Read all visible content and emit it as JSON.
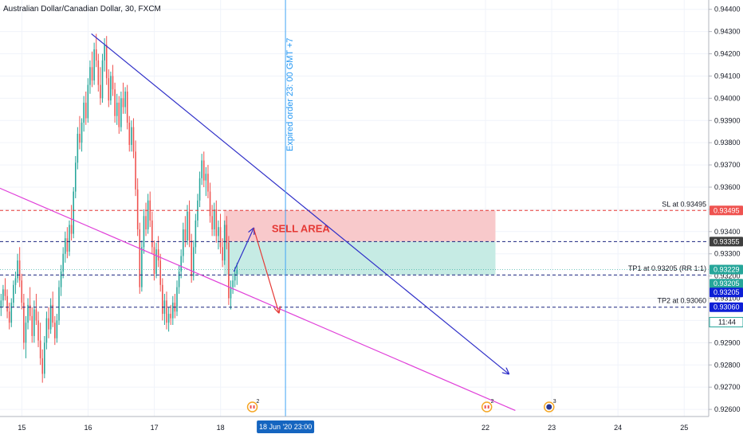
{
  "chart_data": {
    "type": "candlestick",
    "title": "Australian Dollar/Canadian Dollar, 30, FXCM",
    "y_ticks": [
      0.944,
      0.943,
      0.942,
      0.941,
      0.94,
      0.939,
      0.938,
      0.937,
      0.936,
      0.935,
      0.934,
      0.933,
      0.932,
      0.931,
      0.93,
      0.929,
      0.928,
      0.927,
      0.926
    ],
    "y_tick_labels": [
      "0.94400",
      "0.94300",
      "0.94200",
      "0.94100",
      "0.94000",
      "0.93900",
      "0.93800",
      "0.93700",
      "0.93600",
      "0.93500",
      "0.93400",
      "0.93300",
      "0.93200",
      "0.93100",
      "0.93000",
      "0.92900",
      "0.92800",
      "0.92700",
      "0.92600"
    ],
    "ylim": [
      0.92568,
      0.94442
    ],
    "x_ticks": [
      "15",
      "16",
      "17",
      "18",
      "22",
      "23",
      "24",
      "25"
    ],
    "x_tick_days": [
      15,
      16,
      17,
      18,
      22,
      23,
      24,
      25
    ],
    "xlim_days": [
      14.67,
      25.37
    ],
    "x_highlight_label": "18 Jun '20   23:00",
    "x_highlight_day": 18.98,
    "vertical_line_label": "Expired order 23: 00 GMT +7",
    "levels": [
      {
        "name": "SL",
        "value": 0.93495,
        "label": "SL at 0.93495",
        "color": "#e53935",
        "tag": "0.93495"
      },
      {
        "name": "Entry",
        "value": 0.93355,
        "label": "",
        "color": "#1a237e",
        "tag": "0.93355"
      },
      {
        "name": "TP1",
        "value": 0.93205,
        "label": "TP1 at 0.93205 (RR 1:1)",
        "color": "#1a237e",
        "tag": "0.93205"
      },
      {
        "name": "TP2",
        "value": 0.9306,
        "label": "TP2 at 0.93060",
        "color": "#1a237e",
        "tag": "0.93060"
      }
    ],
    "price_tags": [
      {
        "value": 0.93495,
        "text": "0.93495",
        "color": "#ef5350"
      },
      {
        "value": 0.93355,
        "text": "0.93355",
        "color": "#3f3f3f"
      },
      {
        "value": 0.93229,
        "text": "0.93229",
        "color": "#26a69a"
      },
      {
        "value": 0.93205,
        "text": "0.93205",
        "color": "#26a69a"
      },
      {
        "value": 0.93205,
        "text": "0.93205",
        "color": "#0d1fd6"
      },
      {
        "value": 0.9306,
        "text": "0.93060",
        "color": "#0d1fd6"
      }
    ],
    "countdown": "11:44",
    "zones": [
      {
        "name": "SELL AREA",
        "label": "SELL AREA",
        "from_day": 18.05,
        "to_day": 22.15,
        "low": 0.93355,
        "high": 0.93495,
        "color": "#f8c9cb"
      },
      {
        "name": "target",
        "label": "",
        "from_day": 18.05,
        "to_day": 22.15,
        "low": 0.93205,
        "high": 0.93355,
        "color": "#c6ebe4"
      }
    ],
    "trendlines": [
      {
        "name": "falling-resistance",
        "color": "#2f2fc8",
        "points": [
          [
            16.05,
            0.9429
          ],
          [
            22.35,
            0.9276
          ]
        ],
        "arrow": true
      },
      {
        "name": "support",
        "color": "#e040d9",
        "points": [
          [
            14.67,
            0.93595
          ],
          [
            22.45,
            0.92595
          ]
        ],
        "arrow": false
      }
    ],
    "projection_arrows": [
      {
        "name": "up-arrow",
        "color": "#2f2fc8",
        "points": [
          [
            18.2,
            0.9322
          ],
          [
            18.5,
            0.93415
          ]
        ]
      },
      {
        "name": "down-arrow",
        "color": "#e53935",
        "points": [
          [
            18.5,
            0.93415
          ],
          [
            18.88,
            0.93035
          ]
        ]
      }
    ],
    "events": [
      {
        "day": 18.48,
        "count": "2",
        "kind": "ca-flag"
      },
      {
        "day": 22.02,
        "count": "2",
        "kind": "ca-flag"
      },
      {
        "day": 22.96,
        "count": "3",
        "kind": "au-flag"
      }
    ],
    "colors": {
      "up": "#26a69a",
      "down": "#ef5350"
    },
    "candles_start_day": 14.67,
    "candle_step_days": 0.03125,
    "candles": [
      [
        0.9306,
        0.9312,
        0.9302,
        0.9309
      ],
      [
        0.9309,
        0.9316,
        0.9306,
        0.9314
      ],
      [
        0.9314,
        0.9319,
        0.9309,
        0.9311
      ],
      [
        0.9311,
        0.9314,
        0.9301,
        0.9304
      ],
      [
        0.9304,
        0.9308,
        0.9296,
        0.9299
      ],
      [
        0.9299,
        0.931,
        0.9297,
        0.9308
      ],
      [
        0.9308,
        0.9318,
        0.9306,
        0.9316
      ],
      [
        0.9316,
        0.9322,
        0.9312,
        0.9319
      ],
      [
        0.9319,
        0.933,
        0.9317,
        0.9327
      ],
      [
        0.9327,
        0.9333,
        0.9315,
        0.9318
      ],
      [
        0.9318,
        0.9321,
        0.9305,
        0.9308
      ],
      [
        0.9308,
        0.9312,
        0.9287,
        0.929
      ],
      [
        0.929,
        0.9302,
        0.9283,
        0.9299
      ],
      [
        0.9299,
        0.931,
        0.9296,
        0.9307
      ],
      [
        0.9307,
        0.9315,
        0.93,
        0.9302
      ],
      [
        0.9302,
        0.9306,
        0.929,
        0.9293
      ],
      [
        0.9293,
        0.9309,
        0.929,
        0.9305
      ],
      [
        0.9305,
        0.9312,
        0.9298,
        0.93
      ],
      [
        0.93,
        0.9304,
        0.9288,
        0.9291
      ],
      [
        0.9291,
        0.9299,
        0.928,
        0.9283
      ],
      [
        0.9283,
        0.9287,
        0.9272,
        0.9276
      ],
      [
        0.9276,
        0.9293,
        0.9274,
        0.929
      ],
      [
        0.929,
        0.9304,
        0.9287,
        0.9301
      ],
      [
        0.9301,
        0.9306,
        0.9292,
        0.9296
      ],
      [
        0.9296,
        0.931,
        0.9294,
        0.9307
      ],
      [
        0.9307,
        0.9313,
        0.9297,
        0.9299
      ],
      [
        0.9299,
        0.9302,
        0.9289,
        0.9292
      ],
      [
        0.9292,
        0.9303,
        0.929,
        0.93
      ],
      [
        0.93,
        0.9318,
        0.9298,
        0.9315
      ],
      [
        0.9315,
        0.9325,
        0.9311,
        0.9322
      ],
      [
        0.9322,
        0.9333,
        0.9319,
        0.933
      ],
      [
        0.933,
        0.934,
        0.9326,
        0.9337
      ],
      [
        0.9337,
        0.9342,
        0.9328,
        0.9331
      ],
      [
        0.9331,
        0.9345,
        0.9329,
        0.9343
      ],
      [
        0.9343,
        0.9352,
        0.9336,
        0.9339
      ],
      [
        0.9339,
        0.936,
        0.9337,
        0.9358
      ],
      [
        0.9358,
        0.9374,
        0.9355,
        0.9371
      ],
      [
        0.9371,
        0.9387,
        0.9368,
        0.9384
      ],
      [
        0.9384,
        0.9392,
        0.9377,
        0.938
      ],
      [
        0.938,
        0.9391,
        0.9376,
        0.9389
      ],
      [
        0.9389,
        0.9401,
        0.9385,
        0.9398
      ],
      [
        0.9398,
        0.9403,
        0.9388,
        0.9391
      ],
      [
        0.9391,
        0.9409,
        0.9389,
        0.9406
      ],
      [
        0.9406,
        0.9417,
        0.9402,
        0.9414
      ],
      [
        0.9414,
        0.9421,
        0.9405,
        0.9408
      ],
      [
        0.9408,
        0.9425,
        0.9406,
        0.9422
      ],
      [
        0.9422,
        0.9429,
        0.9414,
        0.9417
      ],
      [
        0.9417,
        0.942,
        0.9403,
        0.9406
      ],
      [
        0.9406,
        0.9414,
        0.9397,
        0.94
      ],
      [
        0.94,
        0.942,
        0.9398,
        0.9417
      ],
      [
        0.9417,
        0.9427,
        0.9412,
        0.9424
      ],
      [
        0.9424,
        0.9428,
        0.9406,
        0.9409
      ],
      [
        0.9409,
        0.9413,
        0.9396,
        0.9399
      ],
      [
        0.9399,
        0.9412,
        0.9397,
        0.941
      ],
      [
        0.941,
        0.9415,
        0.9401,
        0.9404
      ],
      [
        0.9404,
        0.9407,
        0.9389,
        0.9392
      ],
      [
        0.9392,
        0.9402,
        0.9388,
        0.9398
      ],
      [
        0.9398,
        0.9401,
        0.9384,
        0.9387
      ],
      [
        0.9387,
        0.9403,
        0.9385,
        0.94
      ],
      [
        0.94,
        0.9407,
        0.9393,
        0.9396
      ],
      [
        0.9396,
        0.9405,
        0.9393,
        0.9403
      ],
      [
        0.9403,
        0.9406,
        0.9386,
        0.9389
      ],
      [
        0.9389,
        0.9392,
        0.9376,
        0.9379
      ],
      [
        0.9379,
        0.939,
        0.9376,
        0.9387
      ],
      [
        0.9387,
        0.9391,
        0.9373,
        0.9376
      ],
      [
        0.9376,
        0.9381,
        0.9356,
        0.9359
      ],
      [
        0.9359,
        0.9364,
        0.9338,
        0.9341
      ],
      [
        0.9341,
        0.9344,
        0.9312,
        0.9315
      ],
      [
        0.9315,
        0.9336,
        0.9313,
        0.9333
      ],
      [
        0.9333,
        0.935,
        0.933,
        0.9347
      ],
      [
        0.9347,
        0.9353,
        0.9338,
        0.9341
      ],
      [
        0.9341,
        0.9357,
        0.9339,
        0.9354
      ],
      [
        0.9354,
        0.9358,
        0.9342,
        0.9345
      ],
      [
        0.9345,
        0.9349,
        0.933,
        0.9333
      ],
      [
        0.9333,
        0.9336,
        0.9318,
        0.9321
      ],
      [
        0.9321,
        0.9335,
        0.9319,
        0.9332
      ],
      [
        0.9332,
        0.9338,
        0.9324,
        0.9327
      ],
      [
        0.9327,
        0.933,
        0.9313,
        0.9316
      ],
      [
        0.9316,
        0.9319,
        0.93,
        0.9303
      ],
      [
        0.9303,
        0.9312,
        0.9298,
        0.9309
      ],
      [
        0.9309,
        0.9313,
        0.9296,
        0.9299
      ],
      [
        0.9299,
        0.9306,
        0.9295,
        0.9303
      ],
      [
        0.9303,
        0.9307,
        0.9298,
        0.9301
      ],
      [
        0.9301,
        0.9311,
        0.9298,
        0.9308
      ],
      [
        0.9308,
        0.9312,
        0.9301,
        0.9304
      ],
      [
        0.9304,
        0.9318,
        0.9302,
        0.9315
      ],
      [
        0.9315,
        0.9325,
        0.9312,
        0.9322
      ],
      [
        0.9322,
        0.9332,
        0.9319,
        0.9329
      ],
      [
        0.9329,
        0.9344,
        0.9326,
        0.9341
      ],
      [
        0.9341,
        0.9347,
        0.9333,
        0.9336
      ],
      [
        0.9336,
        0.9352,
        0.9334,
        0.9349
      ],
      [
        0.9349,
        0.9354,
        0.9333,
        0.9336
      ],
      [
        0.9336,
        0.9339,
        0.9317,
        0.932
      ],
      [
        0.932,
        0.9336,
        0.9318,
        0.9333
      ],
      [
        0.9333,
        0.9348,
        0.933,
        0.9345
      ],
      [
        0.9345,
        0.9357,
        0.9342,
        0.9354
      ],
      [
        0.9354,
        0.9367,
        0.9351,
        0.9364
      ],
      [
        0.9364,
        0.9375,
        0.9361,
        0.9372
      ],
      [
        0.9372,
        0.9376,
        0.936,
        0.9363
      ],
      [
        0.9363,
        0.9369,
        0.9356,
        0.9366
      ],
      [
        0.9366,
        0.937,
        0.9355,
        0.9358
      ],
      [
        0.9358,
        0.9362,
        0.9344,
        0.9347
      ],
      [
        0.9347,
        0.9352,
        0.9338,
        0.9341
      ],
      [
        0.9341,
        0.9353,
        0.9338,
        0.935
      ],
      [
        0.935,
        0.9354,
        0.9335,
        0.9338
      ],
      [
        0.9338,
        0.9345,
        0.9332,
        0.9342
      ],
      [
        0.9342,
        0.9348,
        0.933,
        0.9333
      ],
      [
        0.9333,
        0.9337,
        0.9324,
        0.9327
      ],
      [
        0.9327,
        0.9345,
        0.9325,
        0.9343
      ],
      [
        0.9343,
        0.9347,
        0.9332,
        0.9335
      ],
      [
        0.9335,
        0.9338,
        0.9307,
        0.931
      ],
      [
        0.931,
        0.9318,
        0.9305,
        0.9315
      ],
      [
        0.9315,
        0.9321,
        0.9312,
        0.9318
      ],
      [
        0.9318,
        0.9324,
        0.9315,
        0.9321
      ],
      [
        0.9321,
        0.9326,
        0.9316,
        0.9323
      ]
    ]
  }
}
